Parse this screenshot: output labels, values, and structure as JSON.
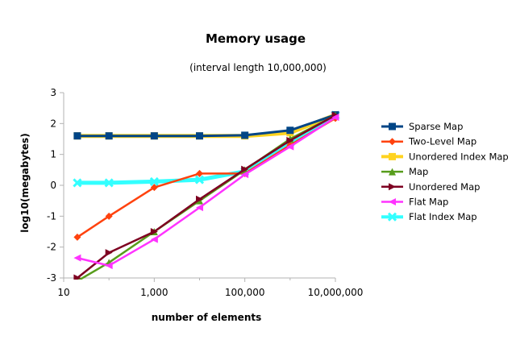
{
  "chart_data": {
    "type": "line",
    "title": "Memory usage",
    "subtitle": "(interval length 10,000,000)",
    "xlabel": "number of elements",
    "ylabel": "log10(megabytes)",
    "x_scale": "log",
    "xlim": [
      10,
      10000000
    ],
    "ylim": [
      -3,
      3
    ],
    "x_tick_values": [
      10,
      1000,
      100000,
      10000000
    ],
    "x_tick_labels": [
      "10",
      "1,000",
      "100,000",
      "10,000,000"
    ],
    "y_ticks": [
      -3,
      -2,
      -1,
      0,
      1,
      2,
      3
    ],
    "grid": false,
    "legend_position": "right",
    "series": [
      {
        "name": "Sparse Map",
        "color": "#004586",
        "marker": "square",
        "width": 3,
        "x": [
          20,
          100,
          1000,
          10000,
          100000,
          1000000,
          10000000
        ],
        "y": [
          1.6,
          1.6,
          1.6,
          1.6,
          1.62,
          1.78,
          2.28
        ]
      },
      {
        "name": "Two-Level Map",
        "color": "#ff420e",
        "marker": "diamond",
        "width": 2.5,
        "x": [
          20,
          100,
          1000,
          10000,
          100000,
          1000000,
          10000000
        ],
        "y": [
          -1.68,
          -1.0,
          -0.07,
          0.38,
          0.38,
          1.3,
          2.17
        ]
      },
      {
        "name": "Unordered Index Map",
        "color": "#ffd320",
        "marker": "square",
        "width": 5,
        "x": [
          20,
          100,
          1000,
          10000,
          100000,
          1000000,
          10000000
        ],
        "y": [
          1.6,
          1.6,
          1.6,
          1.6,
          1.6,
          1.7,
          2.28
        ]
      },
      {
        "name": "Map",
        "color": "#579d1c",
        "marker": "triangle-up",
        "width": 2.5,
        "x": [
          20,
          100,
          1000,
          10000,
          100000,
          1000000,
          10000000
        ],
        "y": [
          -3.1,
          -2.5,
          -1.5,
          -0.5,
          0.5,
          1.5,
          2.27
        ]
      },
      {
        "name": "Unordered Map",
        "color": "#7e0021",
        "marker": "triangle-right",
        "width": 2.5,
        "x": [
          20,
          100,
          1000,
          10000,
          100000,
          1000000,
          10000000
        ],
        "y": [
          -3.0,
          -2.18,
          -1.5,
          -0.45,
          0.52,
          1.45,
          2.27
        ]
      },
      {
        "name": "Flat Map",
        "color": "#ff33ff",
        "marker": "triangle-left",
        "width": 2.5,
        "x": [
          20,
          100,
          1000,
          10000,
          100000,
          1000000,
          10000000
        ],
        "y": [
          -2.35,
          -2.6,
          -1.75,
          -0.72,
          0.35,
          1.25,
          2.2
        ]
      },
      {
        "name": "Flat Index Map",
        "color": "#33ffff",
        "marker": "x",
        "width": 5,
        "x": [
          20,
          100,
          1000,
          10000,
          100000,
          1000000,
          10000000
        ],
        "y": [
          0.08,
          0.08,
          0.12,
          0.18,
          0.45,
          1.38,
          2.27
        ]
      }
    ]
  }
}
